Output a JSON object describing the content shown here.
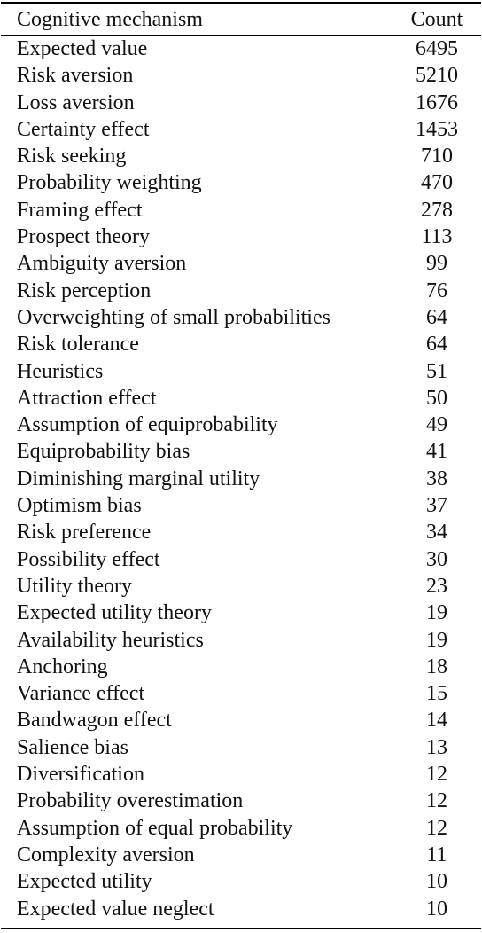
{
  "table": {
    "headers": {
      "mechanism": "Cognitive mechanism",
      "count": "Count"
    },
    "rows": [
      {
        "mechanism": "Expected value",
        "count": "6495"
      },
      {
        "mechanism": "Risk aversion",
        "count": "5210"
      },
      {
        "mechanism": "Loss aversion",
        "count": "1676"
      },
      {
        "mechanism": "Certainty effect",
        "count": "1453"
      },
      {
        "mechanism": "Risk seeking",
        "count": "710"
      },
      {
        "mechanism": "Probability weighting",
        "count": "470"
      },
      {
        "mechanism": "Framing effect",
        "count": "278"
      },
      {
        "mechanism": "Prospect theory",
        "count": "113"
      },
      {
        "mechanism": "Ambiguity aversion",
        "count": "99"
      },
      {
        "mechanism": "Risk perception",
        "count": "76"
      },
      {
        "mechanism": "Overweighting of small probabilities",
        "count": "64"
      },
      {
        "mechanism": "Risk tolerance",
        "count": "64"
      },
      {
        "mechanism": "Heuristics",
        "count": "51"
      },
      {
        "mechanism": "Attraction effect",
        "count": "50"
      },
      {
        "mechanism": "Assumption of equiprobability",
        "count": "49"
      },
      {
        "mechanism": "Equiprobability bias",
        "count": "41"
      },
      {
        "mechanism": "Diminishing marginal utility",
        "count": "38"
      },
      {
        "mechanism": "Optimism bias",
        "count": "37"
      },
      {
        "mechanism": "Risk preference",
        "count": "34"
      },
      {
        "mechanism": "Possibility effect",
        "count": "30"
      },
      {
        "mechanism": "Utility theory",
        "count": "23"
      },
      {
        "mechanism": "Expected utility theory",
        "count": "19"
      },
      {
        "mechanism": "Availability heuristics",
        "count": "19"
      },
      {
        "mechanism": "Anchoring",
        "count": "18"
      },
      {
        "mechanism": "Variance effect",
        "count": "15"
      },
      {
        "mechanism": "Bandwagon effect",
        "count": "14"
      },
      {
        "mechanism": "Salience bias",
        "count": "13"
      },
      {
        "mechanism": "Diversification",
        "count": "12"
      },
      {
        "mechanism": "Probability overestimation",
        "count": "12"
      },
      {
        "mechanism": "Assumption of equal probability",
        "count": "12"
      },
      {
        "mechanism": "Complexity aversion",
        "count": "11"
      },
      {
        "mechanism": "Expected utility",
        "count": "10"
      },
      {
        "mechanism": "Expected value neglect",
        "count": "10"
      }
    ]
  }
}
